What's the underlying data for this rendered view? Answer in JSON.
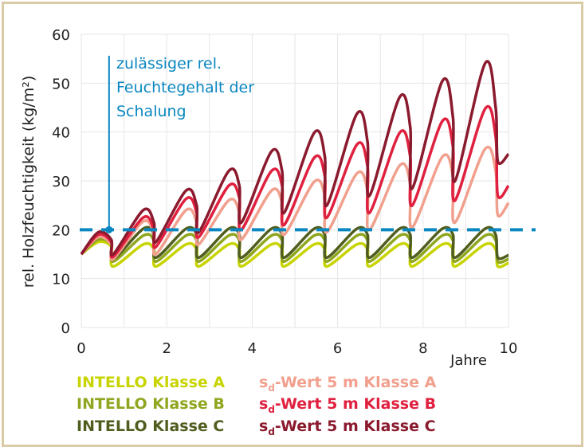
{
  "chart_data": {
    "type": "line",
    "xlabel": "Jahre",
    "ylabel": "rel. Holzfeuchtigkeit (kg/m²)",
    "xlim": [
      0,
      10
    ],
    "ylim": [
      0,
      60
    ],
    "xticks": [
      "0",
      "2",
      "4",
      "6",
      "8",
      "10"
    ],
    "yticks": [
      "0",
      "10",
      "20",
      "30",
      "40",
      "50",
      "60"
    ],
    "grid": true,
    "legend_position": "bottom",
    "threshold": {
      "y": 20,
      "color": "#0a87c0",
      "style": "dashed"
    },
    "annotation": {
      "lines": [
        "zulässiger rel.",
        "Feuchtegehalt der",
        "Schalung"
      ],
      "x": 0.65,
      "color": "#0a87c0"
    },
    "x": [
      0,
      0.4,
      0.7,
      0.75,
      1.45,
      1.7,
      1.75,
      2.45,
      2.7,
      2.75,
      3.45,
      3.7,
      3.75,
      4.45,
      4.7,
      4.75,
      5.45,
      5.7,
      5.75,
      6.45,
      6.7,
      6.75,
      7.45,
      7.7,
      7.75,
      8.45,
      8.7,
      8.75,
      9.45,
      9.7,
      9.75,
      10
    ],
    "series": [
      {
        "name": "INTELLO Klasse A",
        "color": "#c8d400",
        "values": [
          15,
          17.5,
          16.5,
          12.5,
          17,
          16,
          12.5,
          17,
          16,
          12.5,
          17,
          16,
          12.5,
          17,
          16,
          12.5,
          17,
          16,
          12.5,
          17,
          16,
          12.5,
          17,
          16,
          12.5,
          17,
          16,
          12.5,
          17,
          16,
          12.5,
          13.2
        ]
      },
      {
        "name": "INTELLO Klasse B",
        "color": "#8fa61e",
        "values": [
          15,
          18,
          17,
          13.5,
          18.8,
          17.8,
          13.5,
          18.8,
          17.8,
          13.5,
          18.8,
          17.8,
          13.5,
          18.8,
          17.8,
          13.5,
          18.8,
          17.8,
          13.5,
          18.8,
          17.8,
          13.5,
          18.8,
          17.8,
          13.5,
          18.8,
          17.8,
          13.5,
          18.8,
          17.8,
          13.5,
          14
        ]
      },
      {
        "name": "INTELLO Klasse C",
        "color": "#4f5e1e",
        "values": [
          15,
          18.5,
          17.5,
          14,
          20.2,
          19,
          14.3,
          20.2,
          19,
          14.3,
          20.2,
          19,
          14.3,
          20.2,
          19,
          14.3,
          20.2,
          19,
          14.3,
          20.2,
          19,
          14.3,
          20.2,
          19,
          14.3,
          20.2,
          19,
          14.3,
          20.2,
          19,
          14.3,
          14.8
        ]
      },
      {
        "name": "sd-Wert 5 m Klasse A",
        "color": "#f2a08e",
        "values": [
          15,
          18.5,
          17,
          14,
          21.7,
          19,
          15,
          24,
          21.5,
          17,
          26,
          23.5,
          18,
          28,
          25.5,
          19,
          29.8,
          27,
          19.5,
          31.5,
          28,
          20,
          33.1,
          29.5,
          20.5,
          34.9,
          31,
          21.5,
          36.5,
          32,
          23,
          25.5
        ]
      },
      {
        "name": "sd-Wert 5 m Klasse B",
        "color": "#e0203f",
        "values": [
          15,
          19,
          17.5,
          14.5,
          22.5,
          20,
          16.5,
          26.3,
          23.5,
          18.5,
          29,
          26.5,
          20,
          32,
          29,
          21,
          34.7,
          31,
          22.5,
          37.4,
          33,
          23.5,
          39.8,
          35,
          25,
          42.2,
          37,
          26,
          44.7,
          39,
          27,
          29
        ]
      },
      {
        "name": "sd-Wert 5 m Klasse C",
        "color": "#8b1a2e",
        "values": [
          15,
          19.5,
          18,
          15,
          24,
          21.5,
          17.5,
          28,
          25,
          19.5,
          32,
          29,
          21.5,
          36,
          32,
          23.5,
          39.8,
          35,
          25,
          43.7,
          38,
          27,
          47.1,
          41,
          28.5,
          50.4,
          43,
          30,
          54,
          45,
          34,
          35.5
        ]
      }
    ]
  },
  "legend": {
    "intello_a": "INTELLO Klasse A",
    "intello_b": "INTELLO Klasse B",
    "intello_c": "INTELLO Klasse C",
    "sd_prefix": "s",
    "sd_sub": "d",
    "sd_a": "-Wert 5 m Klasse A",
    "sd_b": "-Wert 5 m Klasse B",
    "sd_c": "-Wert 5 m Klasse C"
  }
}
